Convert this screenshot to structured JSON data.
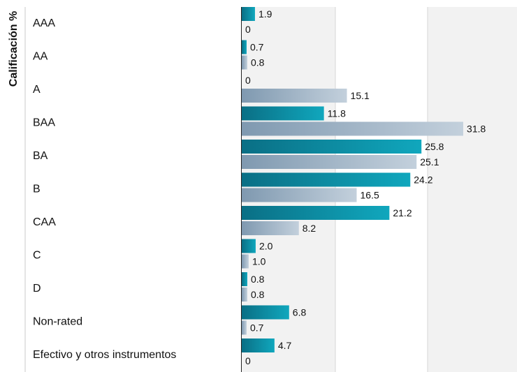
{
  "chart_data": {
    "type": "bar",
    "orientation": "horizontal",
    "ylabel": "Calificación %",
    "xlim": [
      0,
      35
    ],
    "grid": true,
    "categories": [
      "AAA",
      "AA",
      "A",
      "BAA",
      "BA",
      "B",
      "CAA",
      "C",
      "D",
      "Non-rated",
      "Efectivo y otros instrumentos"
    ],
    "series": [
      {
        "color": "#0a8ea0",
        "values": [
          1.9,
          0.7,
          0,
          11.8,
          25.8,
          24.2,
          21.2,
          2.0,
          0.8,
          6.8,
          4.7
        ]
      },
      {
        "color": "#9fb4c8",
        "values": [
          0,
          0.8,
          15.1,
          31.8,
          25.1,
          16.5,
          8.2,
          1.0,
          0.8,
          0.7,
          0
        ]
      }
    ],
    "value_labels": [
      [
        "1.9",
        "0.7",
        "0",
        "11.8",
        "25.8",
        "24.2",
        "21.2",
        "2.0",
        "0.8",
        "6.8",
        "4.7"
      ],
      [
        "0",
        "0.8",
        "15.1",
        "31.8",
        "25.1",
        "16.5",
        "8.2",
        "1.0",
        "0.8",
        "0.7",
        "0"
      ]
    ]
  }
}
